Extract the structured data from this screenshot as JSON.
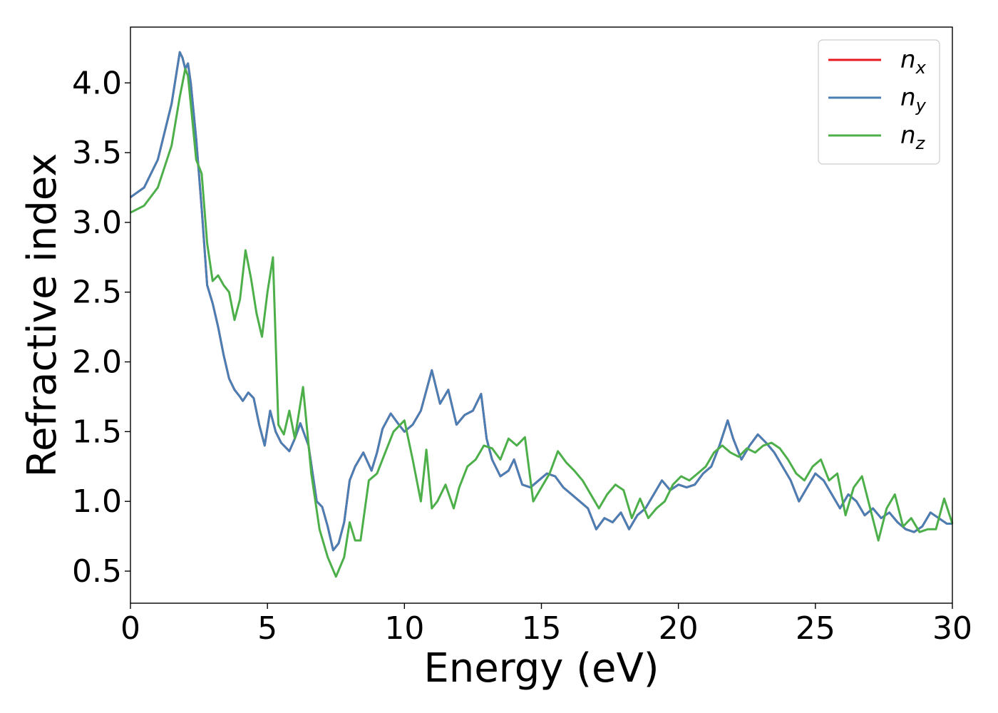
{
  "chart_data": {
    "type": "line",
    "xlabel": "Energy (eV)",
    "ylabel": "Refractive index",
    "xlim": [
      0,
      30
    ],
    "ylim": [
      0.27,
      4.4
    ],
    "xticks": [
      0,
      5,
      10,
      15,
      20,
      25,
      30
    ],
    "xtick_labels": [
      "0",
      "5",
      "10",
      "15",
      "20",
      "25",
      "30"
    ],
    "yticks": [
      0.5,
      1.0,
      1.5,
      2.0,
      2.5,
      3.0,
      3.5,
      4.0
    ],
    "ytick_labels": [
      "0.5",
      "1.0",
      "1.5",
      "2.0",
      "2.5",
      "3.0",
      "3.5",
      "4.0"
    ],
    "grid": false,
    "legend_position": "top-right",
    "series": [
      {
        "name": "n_x",
        "base": "n",
        "sub": "x",
        "color": "#e41a1c",
        "x": [
          0,
          0.5,
          1.0,
          1.5,
          1.8,
          1.9,
          2.0,
          2.1,
          2.2,
          2.4,
          2.6,
          2.8,
          3.0,
          3.2,
          3.4,
          3.6,
          3.8,
          4.0,
          4.1,
          4.3,
          4.5,
          4.7,
          4.9,
          5.1,
          5.3,
          5.5,
          5.8,
          6.0,
          6.2,
          6.5,
          6.8,
          7.0,
          7.2,
          7.4,
          7.6,
          7.8,
          8.0,
          8.2,
          8.5,
          8.8,
          9.0,
          9.2,
          9.5,
          9.8,
          10.0,
          10.3,
          10.6,
          11.0,
          11.3,
          11.6,
          11.9,
          12.2,
          12.5,
          12.8,
          13.0,
          13.2,
          13.5,
          13.8,
          14.0,
          14.3,
          14.6,
          14.9,
          15.2,
          15.5,
          15.8,
          16.1,
          16.4,
          16.7,
          17.0,
          17.3,
          17.6,
          17.9,
          18.2,
          18.5,
          18.8,
          19.1,
          19.4,
          19.7,
          20.0,
          20.3,
          20.6,
          20.9,
          21.2,
          21.5,
          21.8,
          22.0,
          22.3,
          22.6,
          22.9,
          23.2,
          23.5,
          23.8,
          24.1,
          24.4,
          24.7,
          25.0,
          25.3,
          25.6,
          25.9,
          26.2,
          26.5,
          26.8,
          27.1,
          27.4,
          27.7,
          28.0,
          28.3,
          28.6,
          28.9,
          29.2,
          29.5,
          29.8,
          30.0
        ],
        "values": [
          3.18,
          3.25,
          3.45,
          3.85,
          4.22,
          4.18,
          4.1,
          4.14,
          4.0,
          3.6,
          3.1,
          2.55,
          2.42,
          2.25,
          2.05,
          1.88,
          1.8,
          1.75,
          1.72,
          1.78,
          1.74,
          1.55,
          1.4,
          1.65,
          1.5,
          1.42,
          1.36,
          1.45,
          1.56,
          1.4,
          1.0,
          0.96,
          0.82,
          0.65,
          0.7,
          0.85,
          1.15,
          1.25,
          1.35,
          1.22,
          1.35,
          1.52,
          1.63,
          1.55,
          1.5,
          1.55,
          1.65,
          1.94,
          1.7,
          1.8,
          1.55,
          1.62,
          1.65,
          1.77,
          1.45,
          1.3,
          1.18,
          1.22,
          1.3,
          1.12,
          1.1,
          1.15,
          1.2,
          1.18,
          1.1,
          1.05,
          1.0,
          0.95,
          0.8,
          0.88,
          0.85,
          0.92,
          0.8,
          0.9,
          0.95,
          1.05,
          1.15,
          1.08,
          1.12,
          1.1,
          1.12,
          1.2,
          1.25,
          1.4,
          1.58,
          1.45,
          1.3,
          1.4,
          1.48,
          1.42,
          1.35,
          1.25,
          1.15,
          1.0,
          1.1,
          1.2,
          1.15,
          1.05,
          0.95,
          1.05,
          1.0,
          0.9,
          0.95,
          0.88,
          0.92,
          0.85,
          0.8,
          0.78,
          0.82,
          0.92,
          0.88,
          0.84,
          0.84
        ]
      },
      {
        "name": "n_y",
        "base": "n",
        "sub": "y",
        "color": "#4a7fb5",
        "x": [
          0,
          0.5,
          1.0,
          1.5,
          1.8,
          1.9,
          2.0,
          2.1,
          2.2,
          2.4,
          2.6,
          2.8,
          3.0,
          3.2,
          3.4,
          3.6,
          3.8,
          4.0,
          4.1,
          4.3,
          4.5,
          4.7,
          4.9,
          5.1,
          5.3,
          5.5,
          5.8,
          6.0,
          6.2,
          6.5,
          6.8,
          7.0,
          7.2,
          7.4,
          7.6,
          7.8,
          8.0,
          8.2,
          8.5,
          8.8,
          9.0,
          9.2,
          9.5,
          9.8,
          10.0,
          10.3,
          10.6,
          11.0,
          11.3,
          11.6,
          11.9,
          12.2,
          12.5,
          12.8,
          13.0,
          13.2,
          13.5,
          13.8,
          14.0,
          14.3,
          14.6,
          14.9,
          15.2,
          15.5,
          15.8,
          16.1,
          16.4,
          16.7,
          17.0,
          17.3,
          17.6,
          17.9,
          18.2,
          18.5,
          18.8,
          19.1,
          19.4,
          19.7,
          20.0,
          20.3,
          20.6,
          20.9,
          21.2,
          21.5,
          21.8,
          22.0,
          22.3,
          22.6,
          22.9,
          23.2,
          23.5,
          23.8,
          24.1,
          24.4,
          24.7,
          25.0,
          25.3,
          25.6,
          25.9,
          26.2,
          26.5,
          26.8,
          27.1,
          27.4,
          27.7,
          28.0,
          28.3,
          28.6,
          28.9,
          29.2,
          29.5,
          29.8,
          30.0
        ],
        "values": [
          3.18,
          3.25,
          3.45,
          3.85,
          4.22,
          4.18,
          4.1,
          4.14,
          4.0,
          3.6,
          3.1,
          2.55,
          2.42,
          2.25,
          2.05,
          1.88,
          1.8,
          1.75,
          1.72,
          1.78,
          1.74,
          1.55,
          1.4,
          1.65,
          1.5,
          1.42,
          1.36,
          1.45,
          1.56,
          1.4,
          1.0,
          0.96,
          0.82,
          0.65,
          0.7,
          0.85,
          1.15,
          1.25,
          1.35,
          1.22,
          1.35,
          1.52,
          1.63,
          1.55,
          1.5,
          1.55,
          1.65,
          1.94,
          1.7,
          1.8,
          1.55,
          1.62,
          1.65,
          1.77,
          1.45,
          1.3,
          1.18,
          1.22,
          1.3,
          1.12,
          1.1,
          1.15,
          1.2,
          1.18,
          1.1,
          1.05,
          1.0,
          0.95,
          0.8,
          0.88,
          0.85,
          0.92,
          0.8,
          0.9,
          0.95,
          1.05,
          1.15,
          1.08,
          1.12,
          1.1,
          1.12,
          1.2,
          1.25,
          1.4,
          1.58,
          1.45,
          1.3,
          1.4,
          1.48,
          1.42,
          1.35,
          1.25,
          1.15,
          1.0,
          1.1,
          1.2,
          1.15,
          1.05,
          0.95,
          1.05,
          1.0,
          0.9,
          0.95,
          0.88,
          0.92,
          0.85,
          0.8,
          0.78,
          0.82,
          0.92,
          0.88,
          0.84,
          0.84
        ]
      },
      {
        "name": "n_z",
        "base": "n",
        "sub": "z",
        "color": "#4daf4a",
        "x": [
          0,
          0.5,
          1.0,
          1.5,
          1.8,
          2.0,
          2.1,
          2.2,
          2.4,
          2.6,
          2.8,
          3.0,
          3.2,
          3.4,
          3.6,
          3.8,
          4.0,
          4.2,
          4.4,
          4.6,
          4.8,
          5.0,
          5.2,
          5.4,
          5.6,
          5.8,
          6.0,
          6.3,
          6.6,
          6.9,
          7.2,
          7.5,
          7.8,
          8.0,
          8.2,
          8.4,
          8.7,
          9.0,
          9.3,
          9.6,
          10.0,
          10.3,
          10.6,
          10.8,
          11.0,
          11.2,
          11.5,
          11.8,
          12.0,
          12.3,
          12.6,
          12.9,
          13.2,
          13.5,
          13.8,
          14.1,
          14.4,
          14.7,
          15.0,
          15.3,
          15.6,
          15.9,
          16.2,
          16.5,
          16.8,
          17.1,
          17.4,
          17.7,
          18.0,
          18.3,
          18.6,
          18.9,
          19.2,
          19.5,
          19.8,
          20.1,
          20.4,
          20.7,
          21.0,
          21.3,
          21.6,
          21.9,
          22.2,
          22.5,
          22.8,
          23.1,
          23.4,
          23.7,
          24.0,
          24.3,
          24.6,
          24.9,
          25.2,
          25.5,
          25.8,
          26.1,
          26.4,
          26.7,
          27.0,
          27.3,
          27.6,
          27.9,
          28.2,
          28.5,
          28.8,
          29.1,
          29.4,
          29.7,
          30.0
        ],
        "values": [
          3.07,
          3.12,
          3.25,
          3.55,
          3.9,
          4.1,
          4.05,
          3.85,
          3.45,
          3.35,
          2.85,
          2.58,
          2.62,
          2.55,
          2.5,
          2.3,
          2.45,
          2.8,
          2.6,
          2.35,
          2.18,
          2.5,
          2.75,
          1.55,
          1.48,
          1.65,
          1.45,
          1.82,
          1.2,
          0.8,
          0.6,
          0.46,
          0.6,
          0.85,
          0.72,
          0.72,
          1.15,
          1.2,
          1.35,
          1.5,
          1.58,
          1.3,
          1.0,
          1.37,
          0.95,
          1.0,
          1.12,
          0.95,
          1.1,
          1.25,
          1.3,
          1.4,
          1.38,
          1.3,
          1.45,
          1.4,
          1.46,
          1.0,
          1.1,
          1.2,
          1.36,
          1.28,
          1.22,
          1.15,
          1.05,
          0.95,
          1.05,
          1.12,
          1.08,
          0.88,
          1.02,
          0.88,
          0.95,
          1.0,
          1.12,
          1.18,
          1.15,
          1.2,
          1.25,
          1.35,
          1.4,
          1.35,
          1.32,
          1.38,
          1.35,
          1.4,
          1.42,
          1.38,
          1.3,
          1.2,
          1.15,
          1.25,
          1.3,
          1.15,
          1.2,
          0.9,
          1.1,
          1.18,
          0.95,
          0.72,
          0.95,
          1.05,
          0.82,
          0.88,
          0.78,
          0.8,
          0.8,
          1.02,
          0.84
        ]
      }
    ]
  }
}
